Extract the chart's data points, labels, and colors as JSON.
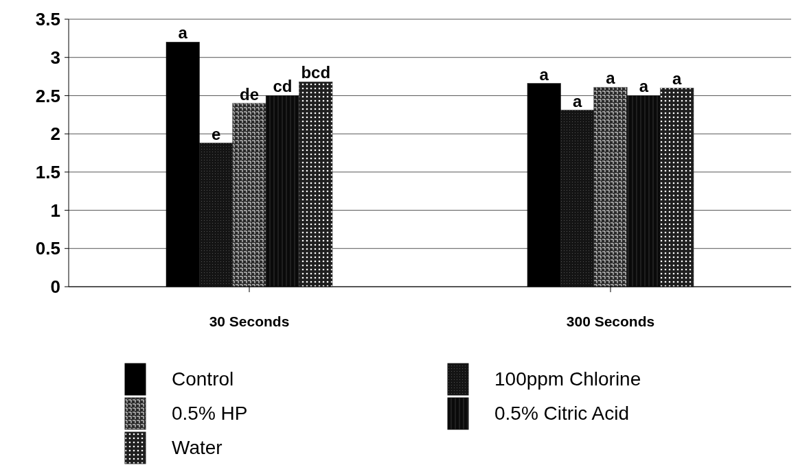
{
  "chart_data": {
    "type": "bar",
    "categories": [
      "30 Seconds",
      "300 Seconds"
    ],
    "series": [
      {
        "name": "Control",
        "color": "#000000",
        "values": [
          3.2,
          2.66
        ],
        "value_labels": [
          "a",
          "a"
        ]
      },
      {
        "name": "100ppm Chlorine",
        "color": "#141414",
        "values": [
          1.88,
          2.31
        ],
        "value_labels": [
          "e",
          "a"
        ]
      },
      {
        "name": "0.5% HP",
        "color": "#2a2a2a",
        "values": [
          2.4,
          2.61
        ],
        "value_labels": [
          "de",
          "a"
        ]
      },
      {
        "name": "0.5% Citric Acid",
        "color": "#0a0a0a",
        "values": [
          2.5,
          2.5
        ],
        "value_labels": [
          "cd",
          "a"
        ]
      },
      {
        "name": "Water",
        "color": "#1f1f1f",
        "values": [
          2.68,
          2.6
        ],
        "value_labels": [
          "bcd",
          "a"
        ]
      }
    ],
    "ylim": [
      0,
      3.5
    ],
    "yticks": [
      0,
      0.5,
      1,
      1.5,
      2,
      2.5,
      3,
      3.5
    ],
    "grid": "y",
    "legend": "bottom"
  }
}
